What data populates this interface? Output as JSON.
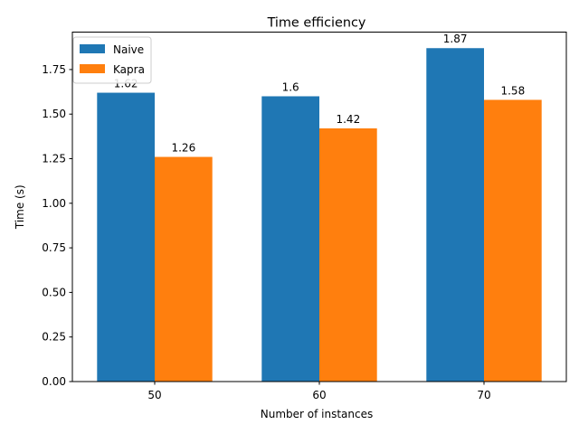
{
  "chart_data": {
    "type": "bar",
    "title": "Time efficiency",
    "xlabel": "Number of instances",
    "ylabel": "Time (s)",
    "categories": [
      "50",
      "60",
      "70"
    ],
    "series": [
      {
        "name": "Naive",
        "values": [
          1.62,
          1.6,
          1.87
        ],
        "labels": [
          "1.62",
          "1.6",
          "1.87"
        ],
        "color": "#1f77b4"
      },
      {
        "name": "Kapra",
        "values": [
          1.26,
          1.42,
          1.58
        ],
        "labels": [
          "1.26",
          "1.42",
          "1.58"
        ],
        "color": "#ff7f0e"
      }
    ],
    "ylim": [
      0,
      1.96
    ],
    "yticks": [
      "0.00",
      "0.25",
      "0.50",
      "0.75",
      "1.00",
      "1.25",
      "1.50",
      "1.75"
    ],
    "grid": false,
    "legend_position": "top-left"
  }
}
